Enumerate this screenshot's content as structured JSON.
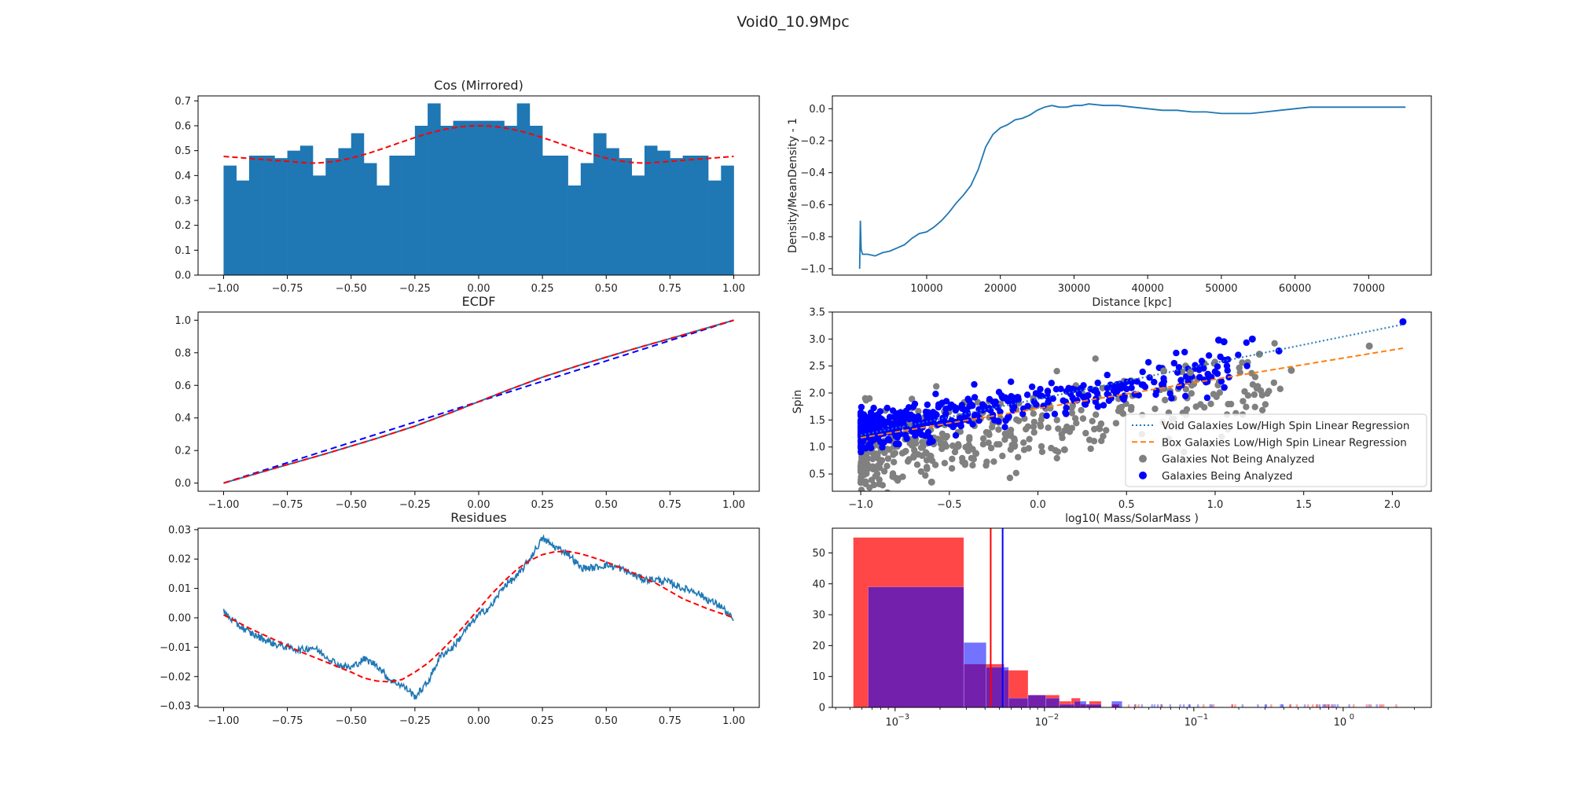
{
  "figure": {
    "suptitle": "Void0_10.9Mpc"
  },
  "colors": {
    "blue": "#1f77b4",
    "orange": "#ff7f0e",
    "red": "#ff0000",
    "gray": "#808080",
    "dotblue": "#0000ff",
    "histred": "#ff0000",
    "histblue": "#0000ff"
  },
  "chart_data": [
    {
      "id": "cos",
      "type": "bar",
      "title": "Cos (Mirrored)",
      "xlabel": "",
      "ylabel": "",
      "xlim": [
        -1.1,
        1.1
      ],
      "ylim": [
        0,
        0.72
      ],
      "xticks": [
        -1.0,
        -0.75,
        -0.5,
        -0.25,
        0.0,
        0.25,
        0.5,
        0.75,
        1.0
      ],
      "xtick_labels": [
        "−1.00",
        "−0.75",
        "−0.50",
        "−0.25",
        "0.00",
        "0.25",
        "0.50",
        "0.75",
        "1.00"
      ],
      "yticks": [
        0,
        0.1,
        0.2,
        0.3,
        0.4,
        0.5,
        0.6,
        0.7
      ],
      "ytick_labels": [
        "0.0",
        "0.1",
        "0.2",
        "0.3",
        "0.4",
        "0.5",
        "0.6",
        "0.7"
      ],
      "bin_edges_range": [
        -1.0,
        1.0
      ],
      "values": [
        0.44,
        0.38,
        0.48,
        0.48,
        0.47,
        0.5,
        0.52,
        0.4,
        0.47,
        0.51,
        0.57,
        0.45,
        0.36,
        0.48,
        0.48,
        0.6,
        0.69,
        0.6,
        0.62,
        0.62,
        0.62,
        0.62,
        0.6,
        0.69,
        0.6,
        0.48,
        0.48,
        0.36,
        0.45,
        0.57,
        0.51,
        0.47,
        0.4,
        0.52,
        0.5,
        0.47,
        0.48,
        0.48,
        0.38,
        0.44
      ],
      "fit_curve": {
        "name": "",
        "a": 0.5,
        "b": 0.055,
        "c": 0.045,
        "note": ""
      }
    },
    {
      "id": "density",
      "type": "line",
      "title": "",
      "xlabel": "Distance [kpc]",
      "ylabel": "Density/MeanDensity - 1",
      "xlim": [
        -2800,
        78500
      ],
      "ylim": [
        -1.04,
        0.08
      ],
      "xticks": [
        10000,
        20000,
        30000,
        40000,
        50000,
        60000,
        70000
      ],
      "xtick_labels": [
        "10000",
        "20000",
        "30000",
        "40000",
        "50000",
        "60000",
        "70000"
      ],
      "yticks": [
        -1.0,
        -0.8,
        -0.6,
        -0.4,
        -0.2,
        0.0
      ],
      "ytick_labels": [
        "−1.0",
        "−0.8",
        "−0.6",
        "−0.4",
        "−0.2",
        "0.0"
      ],
      "x": [
        900,
        1000,
        1100,
        1300,
        2000,
        3000,
        4000,
        5000,
        6000,
        7000,
        8000,
        9000,
        10000,
        11000,
        12000,
        13000,
        14000,
        15000,
        16000,
        17000,
        18000,
        19000,
        20000,
        21000,
        22000,
        23000,
        24000,
        25000,
        26000,
        27000,
        28000,
        29000,
        30000,
        31000,
        32000,
        34000,
        36000,
        38000,
        40000,
        42000,
        44000,
        46000,
        48000,
        50000,
        52000,
        54000,
        56000,
        58000,
        60000,
        62000,
        64000,
        66000,
        68000,
        70000,
        72000,
        75000
      ],
      "y": [
        -1.0,
        -0.7,
        -0.88,
        -0.91,
        -0.91,
        -0.92,
        -0.9,
        -0.89,
        -0.87,
        -0.85,
        -0.81,
        -0.78,
        -0.77,
        -0.74,
        -0.7,
        -0.65,
        -0.59,
        -0.54,
        -0.48,
        -0.38,
        -0.24,
        -0.16,
        -0.12,
        -0.1,
        -0.07,
        -0.06,
        -0.04,
        -0.01,
        0.01,
        0.02,
        0.01,
        0.01,
        0.02,
        0.02,
        0.03,
        0.02,
        0.02,
        0.01,
        0.0,
        -0.01,
        -0.01,
        -0.02,
        -0.02,
        -0.03,
        -0.03,
        -0.03,
        -0.02,
        -0.01,
        0.0,
        0.01,
        0.01,
        0.01,
        0.01,
        0.01,
        0.01,
        0.01
      ]
    },
    {
      "id": "ecdf",
      "type": "line",
      "title": "ECDF",
      "xlabel": "",
      "ylabel": "",
      "xlim": [
        -1.1,
        1.1
      ],
      "ylim": [
        -0.05,
        1.05
      ],
      "xticks": [
        -1.0,
        -0.75,
        -0.5,
        -0.25,
        0.0,
        0.25,
        0.5,
        0.75,
        1.0
      ],
      "xtick_labels": [
        "−1.00",
        "−0.75",
        "−0.50",
        "−0.25",
        "0.00",
        "0.25",
        "0.50",
        "0.75",
        "1.00"
      ],
      "yticks": [
        0.0,
        0.2,
        0.4,
        0.6,
        0.8,
        1.0
      ],
      "ytick_labels": [
        "0.0",
        "0.2",
        "0.4",
        "0.6",
        "0.8",
        "1.0"
      ],
      "series": [
        {
          "name": "",
          "x": [
            -1.0,
            1.0
          ],
          "y": [
            0.0,
            1.0
          ],
          "color": "#0000ff",
          "dash": "8,5"
        },
        {
          "name": "",
          "x": [
            -1.0,
            -0.8,
            -0.6,
            -0.4,
            -0.25,
            -0.1,
            0.0,
            0.1,
            0.25,
            0.4,
            0.6,
            0.8,
            1.0
          ],
          "y": [
            0.0,
            0.091,
            0.18,
            0.274,
            0.35,
            0.438,
            0.5,
            0.562,
            0.65,
            0.726,
            0.82,
            0.909,
            1.0
          ],
          "color": "#ff0000",
          "dash": "8,5"
        },
        {
          "name": "",
          "x": [
            -1.0,
            -0.8,
            -0.6,
            -0.4,
            -0.25,
            -0.1,
            0.0,
            0.1,
            0.25,
            0.4,
            0.6,
            0.8,
            1.0
          ],
          "y": [
            0.0,
            0.091,
            0.18,
            0.274,
            0.35,
            0.438,
            0.5,
            0.562,
            0.65,
            0.726,
            0.82,
            0.909,
            1.0
          ],
          "color": "#1f77b4",
          "dash": ""
        }
      ]
    },
    {
      "id": "spin",
      "type": "scatter",
      "title": "",
      "xlabel": "log10( Mass/SolarMass )",
      "ylabel": "Spin",
      "xlim": [
        -1.16,
        2.22
      ],
      "ylim": [
        0.18,
        3.5
      ],
      "xticks": [
        -1.0,
        -0.5,
        0.0,
        0.5,
        1.0,
        1.5,
        2.0
      ],
      "xtick_labels": [
        "−1.0",
        "−0.5",
        "0.0",
        "0.5",
        "1.0",
        "1.5",
        "2.0"
      ],
      "yticks": [
        0.5,
        1.0,
        1.5,
        2.0,
        2.5,
        3.0,
        3.5
      ],
      "ytick_labels": [
        "0.5",
        "1.0",
        "1.5",
        "2.0",
        "2.5",
        "3.0",
        "3.5"
      ],
      "legend_position": "lower-right",
      "legend": [
        {
          "label": "Void Galaxies Low/High Spin Linear Regression",
          "kind": "dotted",
          "color": "#1f77b4"
        },
        {
          "label": "Box Galaxies Low/High Spin Linear Regression",
          "kind": "dashed",
          "color": "#ff7f0e"
        },
        {
          "label": "Galaxies Not Being Analyzed",
          "kind": "marker",
          "color": "#808080"
        },
        {
          "label": "Galaxies Being Analyzed",
          "kind": "marker",
          "color": "#0000ff"
        }
      ],
      "regression_void": {
        "x": [
          -1.0,
          2.06
        ],
        "y": [
          1.22,
          3.27
        ]
      },
      "regression_box": {
        "x": [
          -1.0,
          2.06
        ],
        "y": [
          1.17,
          2.83
        ]
      },
      "gray_trend": {
        "slope": 0.55,
        "intercept": 1.4,
        "spread": 0.55,
        "xmin": -1.0,
        "xmax": 1.4
      },
      "blue_trend": {
        "slope": 0.55,
        "intercept": 1.85,
        "spread": 0.28,
        "xmin": -1.0,
        "xmax": 1.2
      },
      "highlight_points": [
        {
          "x": 2.06,
          "y": 3.32,
          "color": "#0000ff"
        },
        {
          "x": 1.87,
          "y": 2.87,
          "color": "#808080"
        },
        {
          "x": 1.43,
          "y": 2.42,
          "color": "#808080"
        },
        {
          "x": 1.36,
          "y": 2.78,
          "color": "#0000ff"
        },
        {
          "x": 1.25,
          "y": 2.72,
          "color": "#808080"
        },
        {
          "x": 1.21,
          "y": 3.0,
          "color": "#0000ff"
        },
        {
          "x": 1.02,
          "y": 2.98,
          "color": "#0000ff"
        },
        {
          "x": 1.05,
          "y": 2.95,
          "color": "#0000ff"
        },
        {
          "x": 0.86,
          "y": 2.38,
          "color": "#808080"
        },
        {
          "x": 0.71,
          "y": 2.41,
          "color": "#808080"
        },
        {
          "x": 0.15,
          "y": 0.95,
          "color": "#808080"
        },
        {
          "x": -0.35,
          "y": 0.88,
          "color": "#808080"
        },
        {
          "x": -0.6,
          "y": 0.35,
          "color": "#808080"
        }
      ]
    },
    {
      "id": "residues",
      "type": "line",
      "title": "Residues",
      "xlabel": "",
      "ylabel": "",
      "xlim": [
        -1.1,
        1.1
      ],
      "ylim": [
        -0.0305,
        0.0305
      ],
      "xticks": [
        -1.0,
        -0.75,
        -0.5,
        -0.25,
        0.0,
        0.25,
        0.5,
        0.75,
        1.0
      ],
      "xtick_labels": [
        "−1.00",
        "−0.75",
        "−0.50",
        "−0.25",
        "0.00",
        "0.25",
        "0.50",
        "0.75",
        "1.00"
      ],
      "yticks": [
        -0.03,
        -0.02,
        -0.01,
        0.0,
        0.01,
        0.02,
        0.03
      ],
      "ytick_labels": [
        "−0.03",
        "−0.02",
        "−0.01",
        "0.00",
        "0.01",
        "0.02",
        "0.03"
      ],
      "fit": {
        "x": [
          -1.0,
          -0.9,
          -0.8,
          -0.7,
          -0.6,
          -0.5,
          -0.45,
          -0.4,
          -0.35,
          -0.3,
          -0.25,
          -0.2,
          -0.15,
          -0.1,
          -0.05,
          0.0,
          0.05,
          0.1,
          0.15,
          0.2,
          0.25,
          0.3,
          0.35,
          0.4,
          0.45,
          0.5,
          0.6,
          0.7,
          0.8,
          0.9,
          1.0
        ],
        "y": [
          0.001,
          -0.0035,
          -0.0075,
          -0.0115,
          -0.015,
          -0.0185,
          -0.0205,
          -0.0215,
          -0.0218,
          -0.021,
          -0.0185,
          -0.0155,
          -0.0115,
          -0.007,
          -0.002,
          0.003,
          0.008,
          0.0125,
          0.0165,
          0.0195,
          0.0215,
          0.0225,
          0.0226,
          0.0218,
          0.0205,
          0.019,
          0.0155,
          0.0115,
          0.0065,
          0.003,
          0.0
        ]
      },
      "data": {
        "x": [
          -1.0,
          -0.95,
          -0.9,
          -0.85,
          -0.8,
          -0.75,
          -0.7,
          -0.65,
          -0.6,
          -0.55,
          -0.5,
          -0.45,
          -0.4,
          -0.35,
          -0.3,
          -0.27,
          -0.25,
          -0.2,
          -0.15,
          -0.1,
          -0.05,
          0.0,
          0.05,
          0.1,
          0.15,
          0.2,
          0.25,
          0.3,
          0.35,
          0.4,
          0.45,
          0.5,
          0.55,
          0.6,
          0.65,
          0.7,
          0.75,
          0.8,
          0.85,
          0.9,
          0.95,
          1.0
        ],
        "y": [
          0.002,
          -0.002,
          -0.005,
          -0.007,
          -0.009,
          -0.01,
          -0.011,
          -0.01,
          -0.013,
          -0.016,
          -0.017,
          -0.014,
          -0.016,
          -0.021,
          -0.023,
          -0.025,
          -0.027,
          -0.022,
          -0.013,
          -0.01,
          -0.004,
          0.001,
          0.004,
          0.011,
          0.014,
          0.02,
          0.027,
          0.024,
          0.022,
          0.017,
          0.017,
          0.018,
          0.017,
          0.015,
          0.013,
          0.013,
          0.012,
          0.01,
          0.009,
          0.006,
          0.004,
          -0.001
        ]
      }
    },
    {
      "id": "masshist",
      "type": "bar",
      "title": "",
      "xlabel": "",
      "ylabel": "",
      "x_scale": "log",
      "xlim_log10": [
        -3.42,
        0.59
      ],
      "ylim": [
        0,
        58
      ],
      "xticks_log10": [
        -3,
        -2,
        -1,
        0
      ],
      "xtick_labels": [
        {
          "base": "10",
          "exp": "−3"
        },
        {
          "base": "10",
          "exp": "−2"
        },
        {
          "base": "10",
          "exp": "−1"
        },
        {
          "base": "10",
          "exp": "0"
        }
      ],
      "yticks": [
        0,
        10,
        20,
        30,
        40,
        50
      ],
      "ytick_labels": [
        "0",
        "10",
        "20",
        "30",
        "40",
        "50"
      ],
      "vlines": [
        {
          "x_log10": -2.36,
          "color": "#ff0000"
        },
        {
          "x_log10": -2.28,
          "color": "#0000ff"
        }
      ],
      "series": [
        {
          "name": "",
          "color": "#ff0000",
          "opacity": 0.72,
          "edges_log10": [
            -3.28,
            -2.54,
            -2.54,
            -2.27,
            -2.27,
            -2.11,
            -2.11,
            -1.99,
            -1.99,
            -1.9,
            -1.9,
            -1.82,
            -1.82,
            -1.76,
            -1.76,
            -1.7,
            -1.7,
            -1.62,
            -1.55,
            -1.5
          ],
          "values": [
            55,
            14,
            12,
            4,
            4,
            2,
            3,
            1,
            2,
            1
          ]
        },
        {
          "name": "",
          "color": "#0000ff",
          "opacity": 0.55,
          "edges_log10": [
            -3.18,
            -2.54,
            -2.54,
            -2.39,
            -2.39,
            -2.24,
            -2.24,
            -2.11,
            -2.11,
            -1.99,
            -1.99,
            -1.9,
            -1.9,
            -1.8,
            -1.8,
            -1.72,
            -1.72,
            -1.62,
            -1.55,
            -1.48
          ],
          "values": [
            39,
            21,
            13,
            3,
            4,
            3,
            1,
            2,
            1,
            2
          ]
        }
      ],
      "tail_bins": {
        "x_log10_from": -1.45,
        "x_log10_to": 0.35,
        "max": 1
      }
    }
  ]
}
